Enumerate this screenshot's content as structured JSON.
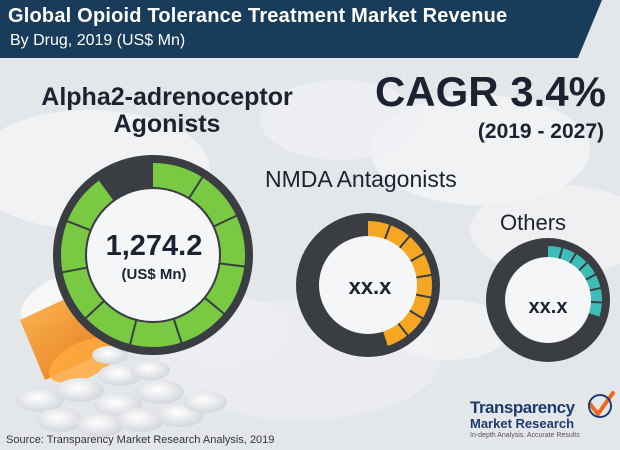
{
  "header": {
    "title": "Global Opioid Tolerance Treatment Market Revenue",
    "subtitle": "By Drug, 2019 (US$ Mn)"
  },
  "cagr": {
    "label": "CAGR 3.4%",
    "period": "(2019 - 2027)"
  },
  "segments": [
    {
      "name": "Alpha2-adrenoceptor Agonists",
      "value": "1,274.2",
      "unit": "(US$ Mn)",
      "color": "#7ac943",
      "fill_fraction": 0.9
    },
    {
      "name": "NMDA Antagonists",
      "value": "xx.x",
      "color": "#f5a623",
      "fill_fraction": 0.45
    },
    {
      "name": "Others",
      "value": "xx.x",
      "color": "#3dbcb8",
      "fill_fraction": 0.3
    }
  ],
  "source": "Source: Transparency Market Research Analysis, 2019",
  "logo": {
    "line1": "Transparency",
    "line2": "Market Research",
    "tagline": "In-depth Analysis. Accurate Results",
    "colors": {
      "navy": "#1c3c6e",
      "orange": "#f26522"
    }
  },
  "colors": {
    "header_bg": "#183c5a",
    "dark_text": "#1c2230",
    "ring_dark": "#3a3e42"
  }
}
